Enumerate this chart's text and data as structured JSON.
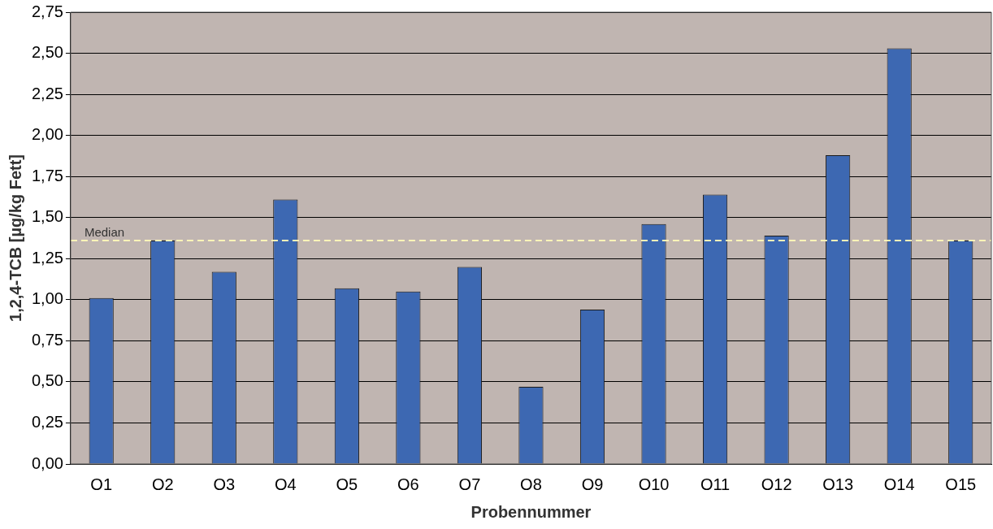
{
  "chart_data": {
    "type": "bar",
    "xlabel": "Probennummer",
    "ylabel": "1,2,4-TCB [µg/kg Fett]",
    "categories": [
      "O1",
      "O2",
      "O3",
      "O4",
      "O5",
      "O6",
      "O7",
      "O8",
      "O9",
      "O10",
      "O11",
      "O12",
      "O13",
      "O14",
      "O15"
    ],
    "values": [
      1.01,
      1.36,
      1.17,
      1.61,
      1.07,
      1.05,
      1.2,
      0.47,
      0.94,
      1.46,
      1.64,
      1.39,
      1.88,
      2.53,
      1.36
    ],
    "color": "#3d68b2",
    "ylim": [
      0,
      2.75
    ],
    "yticks": [
      {
        "value": 0,
        "label": "0,00"
      },
      {
        "value": 0.25,
        "label": "0,25"
      },
      {
        "value": 0.5,
        "label": "0,50"
      },
      {
        "value": 0.75,
        "label": "0,75"
      },
      {
        "value": 1,
        "label": "1,00"
      },
      {
        "value": 1.25,
        "label": "1,25"
      },
      {
        "value": 1.5,
        "label": "1,50"
      },
      {
        "value": 1.75,
        "label": "1,75"
      },
      {
        "value": 2,
        "label": "2,00"
      },
      {
        "value": 2.25,
        "label": "2,25"
      },
      {
        "value": 2.5,
        "label": "2,50"
      },
      {
        "value": 2.75,
        "label": "2,75"
      }
    ],
    "grid": "y",
    "ref_lines": [
      {
        "axis": "y",
        "value": 1.36,
        "label": "Median",
        "color": "#fff4b8",
        "line_style": "dashed"
      }
    ]
  }
}
